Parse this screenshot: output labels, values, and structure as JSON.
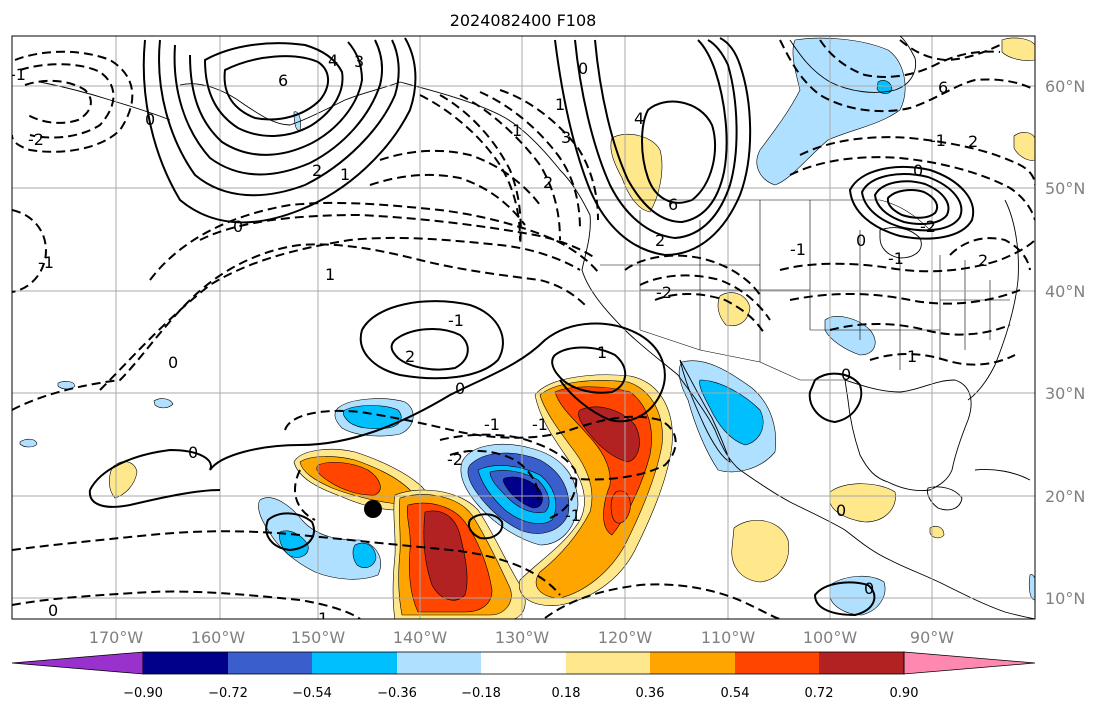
{
  "title": "2024082400 F108",
  "map": {
    "lon_labels": [
      "170°W",
      "160°W",
      "150°W",
      "140°W",
      "130°W",
      "120°W",
      "110°W",
      "100°W",
      "90°W"
    ],
    "lat_labels": [
      "60°N",
      "50°N",
      "40°N",
      "30°N",
      "20°N",
      "10°N"
    ],
    "contour_labels": [
      "6",
      "4",
      "3",
      "2",
      "1",
      "0",
      "0",
      "0",
      "-1",
      "-2",
      "-1",
      "1",
      "2",
      "0",
      "-1",
      "-2",
      "0",
      "-1",
      "-1",
      "1",
      "0",
      "6",
      "2",
      "1",
      "0",
      "1",
      "2",
      "3",
      "4",
      "6",
      "0",
      "-2",
      "-1",
      "2",
      "-2",
      "-1",
      "1",
      "2",
      "0",
      "-1",
      "0",
      "0",
      "0",
      "1",
      "-1"
    ],
    "marker": "storm-position-dot",
    "colors": {
      "strong_neg": "#9932cc",
      "neg_090": "#00008b",
      "neg_072": "#3a5fcd",
      "neg_054": "#00bfff",
      "neg_036": "#b0e0ff",
      "pos_018": "#ffe88c",
      "pos_036": "#ffa500",
      "pos_054": "#ff4500",
      "pos_072": "#b22222",
      "strong_pos": "#ff88b0",
      "grid": "#a9a9a9",
      "contour": "#000000"
    }
  },
  "colorbar": {
    "tick_labels": [
      "−0.90",
      "−0.72",
      "−0.54",
      "−0.36",
      "−0.18",
      "0.18",
      "0.36",
      "0.54",
      "0.72",
      "0.90"
    ],
    "colors": [
      "#9932cc",
      "#00008b",
      "#3a5fcd",
      "#00bfff",
      "#b0e0ff",
      "#ffffff",
      "#ffe88c",
      "#ffa500",
      "#ff4500",
      "#b22222",
      "#ff88b0"
    ]
  }
}
